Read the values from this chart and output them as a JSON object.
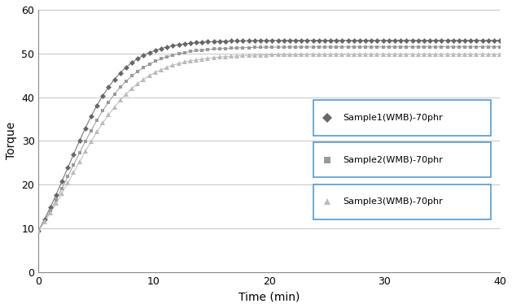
{
  "title": "",
  "xlabel": "Time (min)",
  "ylabel": "Torque",
  "xlim": [
    0,
    40
  ],
  "ylim": [
    0,
    60
  ],
  "xticks": [
    0,
    10,
    20,
    30,
    40
  ],
  "yticks": [
    0,
    10,
    20,
    30,
    40,
    50,
    60
  ],
  "series": [
    {
      "label": "Sample1(WMB)-70phr",
      "color": "#666666",
      "marker": "D",
      "marker_size": 3.5,
      "y0": 9.5,
      "plateau": 53.0,
      "k": 0.42,
      "t_inflect": 2.5
    },
    {
      "label": "Sample2(WMB)-70phr",
      "color": "#999999",
      "marker": "s",
      "marker_size": 3.5,
      "y0": 9.5,
      "plateau": 51.5,
      "k": 0.38,
      "t_inflect": 2.8
    },
    {
      "label": "Sample3(WMB)-70phr",
      "color": "#bbbbbb",
      "marker": "^",
      "marker_size": 4.5,
      "y0": 9.5,
      "plateau": 49.8,
      "k": 0.35,
      "t_inflect": 3.0
    }
  ],
  "legend_edge_color": "#5599cc",
  "background_color": "#ffffff",
  "grid_color": "#bbbbbb",
  "figsize": [
    6.29,
    3.79
  ],
  "dpi": 100
}
